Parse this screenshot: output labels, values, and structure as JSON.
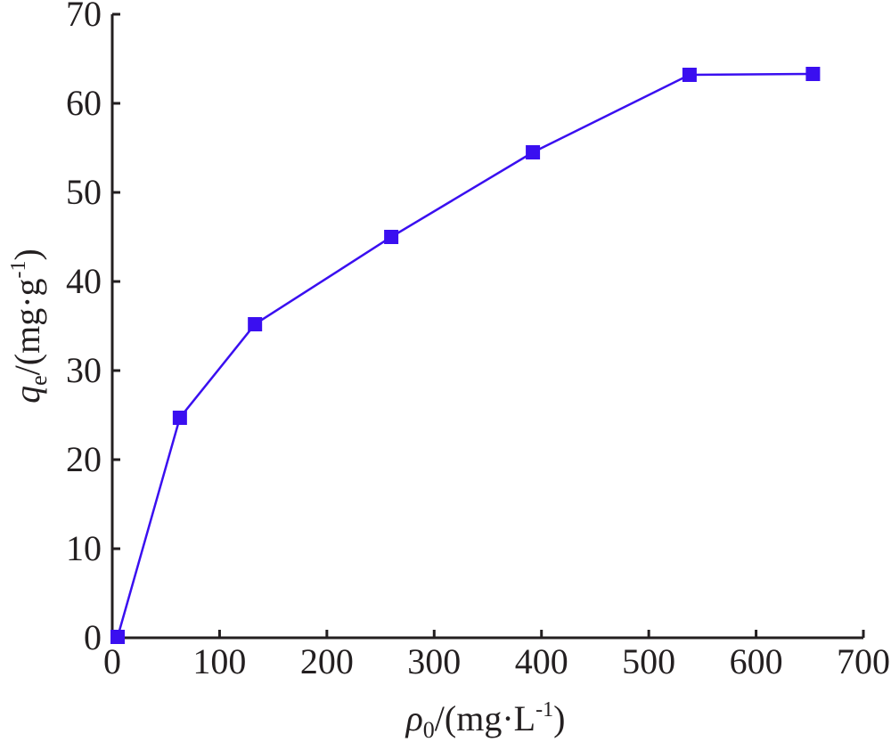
{
  "chart_data": {
    "type": "line",
    "title": "",
    "xlabel": {
      "symbol": "ρ",
      "sub": "0",
      "pre": "/(mg·L",
      "sup": "-1",
      "post": ")"
    },
    "ylabel": {
      "symbol": "q",
      "sub": "e",
      "pre": "/(mg·g",
      "sup": "-1",
      "post": ")"
    },
    "xlim": [
      0,
      700
    ],
    "ylim": [
      0,
      70
    ],
    "xticks": [
      "0",
      "100",
      "200",
      "300",
      "400",
      "500",
      "600",
      "700"
    ],
    "yticks": [
      "0",
      "10",
      "20",
      "30",
      "40",
      "50",
      "60",
      "70"
    ],
    "grid": false,
    "legend": "none",
    "series": [
      {
        "marker": "square",
        "color": "#3a0ff0",
        "x": [
          5,
          63,
          133,
          260,
          392,
          538,
          653
        ],
        "y": [
          0.1,
          24.7,
          35.2,
          45.0,
          54.5,
          63.2,
          63.3
        ]
      }
    ]
  }
}
